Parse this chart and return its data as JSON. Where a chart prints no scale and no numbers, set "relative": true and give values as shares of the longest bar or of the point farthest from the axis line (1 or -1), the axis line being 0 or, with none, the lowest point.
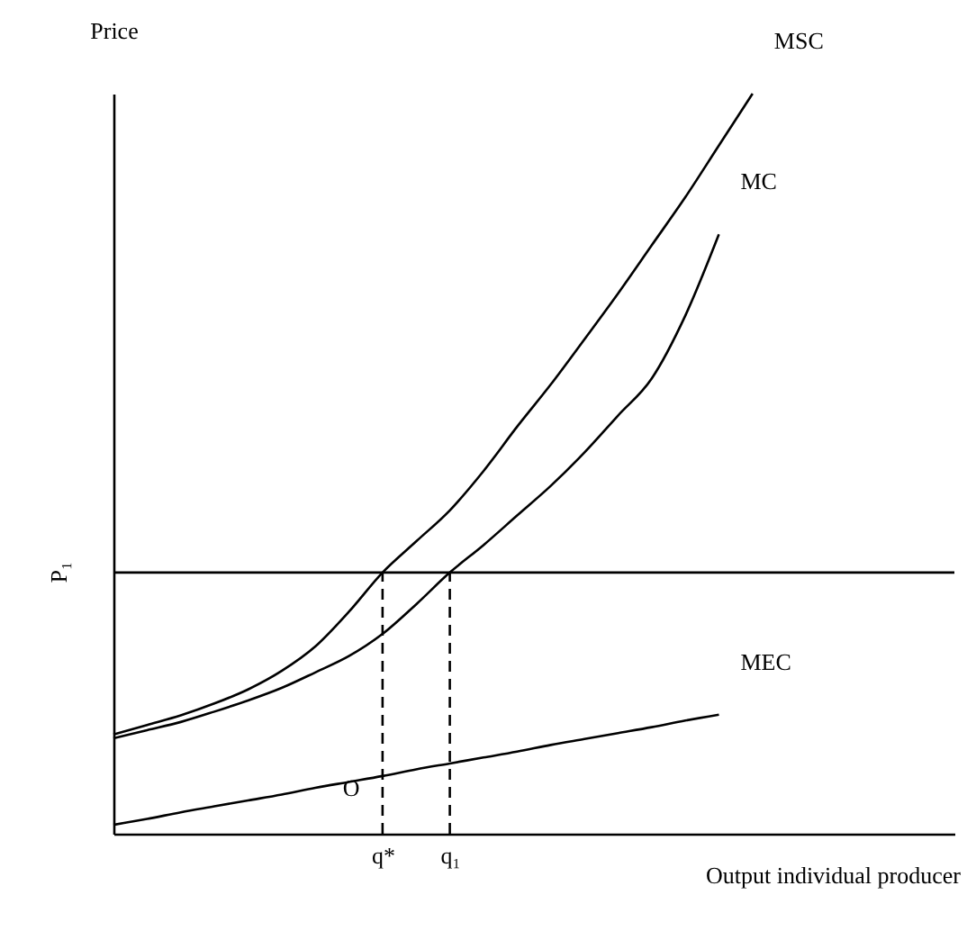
{
  "chart_data": {
    "type": "line",
    "relative": true,
    "ylabel": "Price",
    "xlabel": "Output individual producer",
    "grid": false,
    "marker": "none",
    "categories": [
      null,
      null,
      null,
      null,
      null,
      null,
      null,
      null,
      "q*",
      null,
      "q₁",
      null,
      null,
      null,
      null,
      null,
      null,
      null,
      null,
      null,
      null,
      null,
      null,
      null,
      null,
      null
    ],
    "series": [
      {
        "name": "MSC",
        "color": "#000000",
        "values": [
          0.134,
          0.147,
          0.16,
          0.176,
          0.195,
          0.22,
          0.253,
          0.3,
          0.353,
          0.395,
          0.437,
          0.49,
          0.55,
          0.607,
          0.668,
          0.73,
          0.795,
          0.86,
          0.93,
          1.0,
          null,
          null,
          null,
          null,
          null,
          null
        ]
      },
      {
        "name": "MC",
        "color": "#000000",
        "values": [
          0.129,
          0.14,
          0.151,
          0.165,
          0.18,
          0.197,
          0.218,
          0.24,
          0.27,
          0.31,
          0.353,
          0.39,
          0.43,
          0.47,
          0.515,
          0.565,
          0.615,
          0.7,
          0.81,
          null,
          null,
          null,
          null,
          null,
          null,
          null
        ]
      },
      {
        "name": "MEC",
        "color": "#000000",
        "values": [
          0.012,
          0.02,
          0.029,
          0.037,
          0.045,
          0.053,
          0.062,
          0.07,
          0.078,
          0.087,
          0.095,
          0.103,
          0.111,
          0.12,
          0.128,
          0.136,
          0.144,
          0.153,
          0.161,
          null,
          null,
          null,
          null,
          null,
          null,
          null
        ]
      }
    ],
    "ref_lines": [
      {
        "axis": "y",
        "value": 0.353,
        "label": "P₁",
        "color": "#000000"
      },
      {
        "axis": "x",
        "value": "q*",
        "color": "#000000",
        "line_style": "dashed"
      },
      {
        "axis": "x",
        "value": "q₁",
        "color": "#000000",
        "line_style": "dashed"
      }
    ],
    "annotations": [
      "O"
    ]
  }
}
